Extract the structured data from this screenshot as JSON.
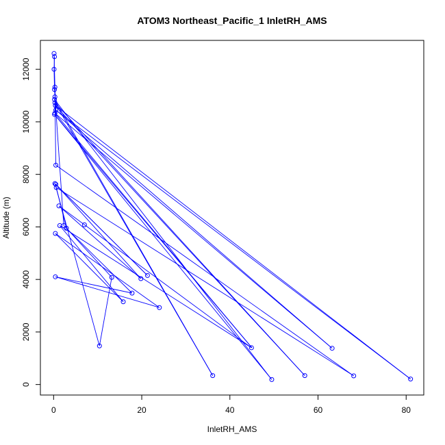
{
  "chart_data": {
    "type": "line",
    "title": "ATOM3 Northeast_Pacific_1 InletRH_AMS",
    "xlabel": "InletRH_AMS",
    "ylabel": "Altitude (m)",
    "xlim": [
      -3,
      84
    ],
    "ylim": [
      -400,
      13100
    ],
    "xticks": [
      0,
      20,
      40,
      60,
      80
    ],
    "yticks": [
      0,
      2000,
      4000,
      6000,
      8000,
      10000,
      12000
    ],
    "grid": false,
    "series": [
      {
        "color": "#0000ff",
        "marker": "open-circle",
        "points": [
          {
            "x": 0.1,
            "y": 12600
          },
          {
            "x": 0.2,
            "y": 12480
          },
          {
            "x": 0.1,
            "y": 12000
          },
          {
            "x": 0.3,
            "y": 11320
          },
          {
            "x": 0.2,
            "y": 11230
          },
          {
            "x": 0.3,
            "y": 10950
          },
          {
            "x": 0.2,
            "y": 10850
          },
          {
            "x": 0.3,
            "y": 10730
          },
          {
            "x": 0.4,
            "y": 10620
          },
          {
            "x": 0.5,
            "y": 10450
          },
          {
            "x": 0.3,
            "y": 10330
          },
          {
            "x": 0.2,
            "y": 10280
          },
          {
            "x": 0.5,
            "y": 8350
          },
          {
            "x": 0.3,
            "y": 7650
          },
          {
            "x": 0.5,
            "y": 7620
          },
          {
            "x": 0.6,
            "y": 7500
          },
          {
            "x": 1.2,
            "y": 6800
          },
          {
            "x": 1.4,
            "y": 6050
          },
          {
            "x": 2.3,
            "y": 6050
          },
          {
            "x": 2.9,
            "y": 5950
          },
          {
            "x": 7.0,
            "y": 6080
          },
          {
            "x": 0.4,
            "y": 5750
          },
          {
            "x": 0.4,
            "y": 4100
          },
          {
            "x": 13.2,
            "y": 4080
          },
          {
            "x": 10.4,
            "y": 1470
          },
          {
            "x": 19.8,
            "y": 4030
          },
          {
            "x": 21.3,
            "y": 4150
          },
          {
            "x": 17.8,
            "y": 3480
          },
          {
            "x": 15.8,
            "y": 3150
          },
          {
            "x": 24.0,
            "y": 2930
          },
          {
            "x": 36.1,
            "y": 340
          },
          {
            "x": 44.9,
            "y": 1400
          },
          {
            "x": 49.5,
            "y": 190
          },
          {
            "x": 57.0,
            "y": 340
          },
          {
            "x": 63.2,
            "y": 1380
          },
          {
            "x": 68.1,
            "y": 330
          },
          {
            "x": 81.0,
            "y": 210
          }
        ],
        "path_order": [
          [
            0.1,
            12600
          ],
          [
            0.3,
            11320
          ],
          [
            0.5,
            10450
          ],
          [
            0.3,
            10330
          ],
          [
            45.0,
            1400
          ],
          [
            0.2,
            10280
          ],
          [
            49.5,
            190
          ],
          [
            0.2,
            10850
          ],
          [
            36.1,
            340
          ],
          [
            0.3,
            10730
          ],
          [
            57.0,
            340
          ],
          [
            0.4,
            10620
          ],
          [
            81.0,
            210
          ],
          [
            0.5,
            10450
          ],
          [
            63.2,
            1380
          ],
          [
            0.3,
            10330
          ],
          [
            0.3,
            10950
          ],
          [
            0.5,
            8350
          ],
          [
            68.1,
            330
          ],
          [
            0.6,
            7500
          ],
          [
            2.9,
            5950
          ],
          [
            13.2,
            4080
          ],
          [
            10.4,
            1470
          ],
          [
            0.3,
            7650
          ],
          [
            21.3,
            4150
          ],
          [
            0.5,
            7620
          ],
          [
            19.8,
            4030
          ],
          [
            1.2,
            6800
          ],
          [
            44.9,
            1400
          ],
          [
            1.4,
            6050
          ],
          [
            15.8,
            3150
          ],
          [
            0.4,
            5750
          ],
          [
            24.0,
            2930
          ],
          [
            0.4,
            4100
          ],
          [
            17.8,
            3480
          ],
          [
            2.3,
            6050
          ],
          [
            0.2,
            11230
          ],
          [
            0.1,
            12000
          ],
          [
            0.2,
            12480
          ]
        ]
      }
    ]
  }
}
